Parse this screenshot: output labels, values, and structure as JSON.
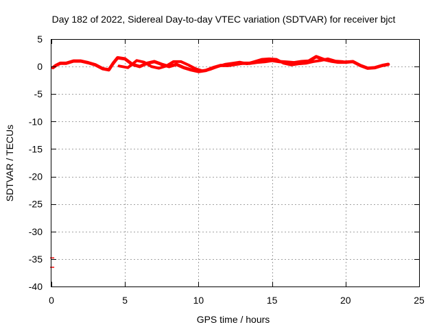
{
  "chart_data": {
    "type": "scatter",
    "title": "Day 182 of 2022, Sidereal Day-to-day VTEC variation (SDTVAR) for receiver bjct",
    "xlabel": "GPS time / hours",
    "ylabel": "SDTVAR / TECUs",
    "xlim": [
      0,
      25
    ],
    "ylim": [
      -40,
      5
    ],
    "xticks": [
      0,
      5,
      10,
      15,
      20,
      25
    ],
    "yticks": [
      5,
      0,
      -5,
      -10,
      -15,
      -20,
      -25,
      -30,
      -35,
      -40
    ],
    "grid": true,
    "legend": "none",
    "color": "#ff0000",
    "series": [
      {
        "band_width": 0.6,
        "values": [
          [
            0.1,
            -0.2
          ],
          [
            0.3,
            0.2
          ],
          [
            0.6,
            0.6
          ],
          [
            1.0,
            0.6
          ],
          [
            1.5,
            1.0
          ],
          [
            2.0,
            1.0
          ],
          [
            2.5,
            0.7
          ],
          [
            3.0,
            0.3
          ],
          [
            3.5,
            -0.4
          ],
          [
            3.9,
            -0.6
          ],
          [
            4.2,
            0.6
          ],
          [
            4.5,
            1.6
          ],
          [
            5.0,
            1.4
          ],
          [
            5.5,
            0.4
          ],
          [
            6.0,
            0.0
          ],
          [
            6.5,
            0.6
          ],
          [
            7.0,
            0.9
          ],
          [
            7.5,
            0.4
          ],
          [
            8.0,
            0.0
          ],
          [
            8.5,
            0.4
          ],
          [
            9.0,
            -0.2
          ],
          [
            9.5,
            -0.6
          ],
          [
            10.0,
            -0.9
          ],
          [
            10.5,
            -0.7
          ],
          [
            11.0,
            -0.2
          ],
          [
            11.5,
            0.2
          ],
          [
            12.0,
            0.2
          ],
          [
            12.5,
            0.4
          ],
          [
            13.0,
            0.6
          ],
          [
            13.5,
            0.6
          ],
          [
            14.0,
            0.8
          ],
          [
            14.5,
            0.9
          ],
          [
            15.0,
            1.1
          ],
          [
            15.5,
            0.9
          ],
          [
            16.0,
            0.8
          ],
          [
            16.5,
            0.7
          ],
          [
            17.0,
            0.9
          ],
          [
            17.5,
            1.0
          ],
          [
            18.0,
            1.8
          ],
          [
            18.5,
            1.3
          ],
          [
            19.0,
            1.0
          ],
          [
            19.5,
            0.8
          ],
          [
            20.0,
            0.8
          ],
          [
            20.5,
            0.9
          ],
          [
            21.0,
            0.2
          ],
          [
            21.5,
            -0.3
          ],
          [
            22.0,
            -0.2
          ],
          [
            22.5,
            0.2
          ],
          [
            22.9,
            0.4
          ]
        ]
      },
      {
        "band_width": 0.5,
        "values": [
          [
            4.6,
            0.1
          ],
          [
            5.2,
            -0.2
          ],
          [
            5.8,
            1.1
          ],
          [
            6.3,
            0.8
          ],
          [
            6.8,
            0.0
          ],
          [
            7.3,
            -0.3
          ],
          [
            7.8,
            0.1
          ],
          [
            8.3,
            0.9
          ],
          [
            8.8,
            0.9
          ],
          [
            9.3,
            0.3
          ],
          [
            9.8,
            -0.4
          ],
          [
            10.3,
            -0.8
          ],
          [
            10.8,
            -0.5
          ],
          [
            11.3,
            0.0
          ],
          [
            11.8,
            0.4
          ],
          [
            12.3,
            0.6
          ],
          [
            12.8,
            0.8
          ],
          [
            13.3,
            0.5
          ],
          [
            13.8,
            0.9
          ],
          [
            14.3,
            1.3
          ],
          [
            14.8,
            1.4
          ],
          [
            15.3,
            1.3
          ],
          [
            15.8,
            0.6
          ],
          [
            16.3,
            0.3
          ],
          [
            16.8,
            0.5
          ],
          [
            17.3,
            0.6
          ],
          [
            17.8,
            0.9
          ],
          [
            18.3,
            1.1
          ],
          [
            18.8,
            1.4
          ],
          [
            19.3,
            1.0
          ],
          [
            19.8,
            0.9
          ]
        ]
      },
      {
        "band_width": 0,
        "values": [
          [
            0.05,
            -34.8
          ],
          [
            0.05,
            -36.5
          ]
        ]
      }
    ]
  }
}
